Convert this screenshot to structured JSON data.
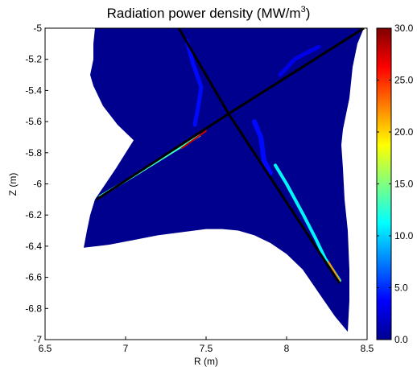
{
  "chart_data": {
    "type": "heatmap",
    "title": "Radiation power density (MW/m",
    "title_sup": "3",
    "title_end": ")",
    "xlabel": "R (m)",
    "ylabel": "Z (m)",
    "xlim": [
      6.5,
      8.5
    ],
    "ylim": [
      -7,
      -5
    ],
    "xticks": [
      "6.5",
      "7",
      "7.5",
      "8",
      "8.5"
    ],
    "yticks": [
      "-5",
      "-5.2",
      "-5.4",
      "-5.6",
      "-5.8",
      "-6",
      "-6.2",
      "-6.4",
      "-6.6",
      "-6.8",
      "-7"
    ],
    "colorbar": {
      "min": 0,
      "max": 30,
      "ticks": [
        "0.0",
        "5.0",
        "10.0",
        "15.0",
        "20.0",
        "25.0",
        "30.0"
      ],
      "colormap": "jet"
    },
    "domain_boundary": [
      [
        6.81,
        -5.0
      ],
      [
        6.96,
        -5.0
      ],
      [
        7.15,
        -5.0
      ],
      [
        7.45,
        -5.0
      ],
      [
        7.75,
        -5.0
      ],
      [
        8.1,
        -5.0
      ],
      [
        8.25,
        -5.0
      ],
      [
        8.48,
        -5.0
      ],
      [
        8.44,
        -5.1
      ],
      [
        8.41,
        -5.25
      ],
      [
        8.39,
        -5.45
      ],
      [
        8.37,
        -5.55
      ],
      [
        8.35,
        -5.65
      ],
      [
        8.34,
        -5.75
      ],
      [
        8.35,
        -5.9
      ],
      [
        8.36,
        -6.1
      ],
      [
        8.38,
        -6.3
      ],
      [
        8.39,
        -6.55
      ],
      [
        8.39,
        -6.75
      ],
      [
        8.38,
        -6.95
      ],
      [
        8.3,
        -6.85
      ],
      [
        8.2,
        -6.7
      ],
      [
        8.1,
        -6.55
      ],
      [
        8.0,
        -6.45
      ],
      [
        7.9,
        -6.38
      ],
      [
        7.8,
        -6.33
      ],
      [
        7.7,
        -6.3
      ],
      [
        7.6,
        -6.29
      ],
      [
        7.5,
        -6.29
      ],
      [
        7.35,
        -6.31
      ],
      [
        7.2,
        -6.33
      ],
      [
        7.05,
        -6.36
      ],
      [
        6.9,
        -6.39
      ],
      [
        6.74,
        -6.41
      ],
      [
        6.76,
        -6.3
      ],
      [
        6.78,
        -6.2
      ],
      [
        6.81,
        -6.1
      ],
      [
        6.94,
        -5.9
      ],
      [
        7.05,
        -5.72
      ],
      [
        6.95,
        -5.62
      ],
      [
        6.86,
        -5.5
      ],
      [
        6.8,
        -5.37
      ],
      [
        6.78,
        -5.3
      ],
      [
        6.8,
        -5.2
      ],
      [
        6.8,
        -5.1
      ]
    ],
    "separatrix_lines": [
      {
        "points": [
          [
            7.33,
            -5.0
          ],
          [
            7.64,
            -5.55
          ],
          [
            8.33,
            -6.64
          ]
        ]
      },
      {
        "points": [
          [
            6.82,
            -6.1
          ],
          [
            7.64,
            -5.55
          ],
          [
            8.48,
            -5.0
          ]
        ]
      }
    ],
    "radiation_bands": [
      {
        "points": [
          [
            6.84,
            -6.08
          ],
          [
            7.05,
            -5.95
          ],
          [
            7.3,
            -5.79
          ],
          [
            7.46,
            -5.69
          ]
        ],
        "value": 13,
        "width": 3
      },
      {
        "points": [
          [
            7.35,
            -5.77
          ],
          [
            7.5,
            -5.66
          ]
        ],
        "value": 28,
        "width": 2
      },
      {
        "points": [
          [
            7.38,
            -5.08
          ],
          [
            7.42,
            -5.23
          ],
          [
            7.47,
            -5.38
          ],
          [
            7.45,
            -5.51
          ],
          [
            7.43,
            -5.62
          ]
        ],
        "value": 4,
        "width": 5
      },
      {
        "points": [
          [
            7.93,
            -5.88
          ],
          [
            8.0,
            -6.0
          ],
          [
            8.1,
            -6.19
          ],
          [
            8.18,
            -6.35
          ],
          [
            8.24,
            -6.48
          ],
          [
            8.33,
            -6.62
          ]
        ],
        "value": 11,
        "width": 4
      },
      {
        "points": [
          [
            8.26,
            -6.5
          ],
          [
            8.33,
            -6.62
          ]
        ],
        "value": 22,
        "width": 2
      },
      {
        "points": [
          [
            7.8,
            -5.6
          ],
          [
            7.84,
            -5.7
          ],
          [
            7.86,
            -5.85
          ],
          [
            7.9,
            -5.93
          ]
        ],
        "value": 4,
        "width": 6
      },
      {
        "points": [
          [
            7.96,
            -5.3
          ],
          [
            8.05,
            -5.2
          ],
          [
            8.14,
            -5.15
          ],
          [
            8.2,
            -5.12
          ]
        ],
        "value": 3,
        "width": 5
      }
    ]
  }
}
